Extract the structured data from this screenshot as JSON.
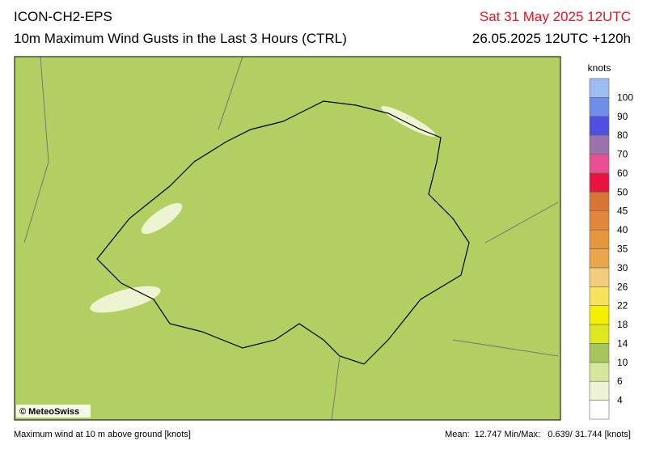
{
  "header": {
    "model": "ICON-CH2-EPS",
    "title": "10m Maximum Wind Gusts in the Last 3 Hours (CTRL)",
    "valid_time": "Sat 31 May 2025 12UTC",
    "run_time": "26.05.2025 12UTC +120h"
  },
  "map": {
    "credit": "© MeteoSwiss"
  },
  "legend": {
    "unit": "knots",
    "levels": [
      4,
      6,
      10,
      14,
      18,
      22,
      26,
      30,
      35,
      40,
      45,
      50,
      60,
      70,
      80,
      90,
      100
    ],
    "colors": [
      "#ffffff",
      "#eef4d2",
      "#d4e79a",
      "#a6c65c",
      "#dde61e",
      "#f6ee00",
      "#f6e35a",
      "#f1cd7c",
      "#eba54a",
      "#e8963c",
      "#e2863a",
      "#d87434",
      "#e8143e",
      "#ea4f92",
      "#9a72ae",
      "#4f4fe0",
      "#6f8eea",
      "#9cbcf2"
    ]
  },
  "footer": {
    "description": "Maximum wind at 10 m above ground [knots]",
    "stats": "Mean:  12.747 Min/Max:   0.639/ 31.744 [knots]"
  }
}
